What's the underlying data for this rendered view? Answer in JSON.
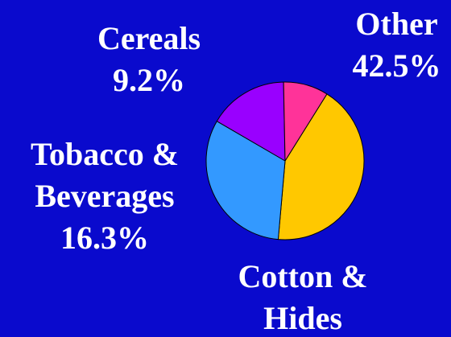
{
  "chart_data": {
    "type": "pie",
    "slices": [
      {
        "label_lines": [
          "Other",
          "42.5%"
        ],
        "value": 42.5,
        "color": "#FFC800"
      },
      {
        "label_lines": [
          "Cotton &",
          "Hides"
        ],
        "value": 32.0,
        "color": "#3399FF"
      },
      {
        "label_lines": [
          "Tobacco &",
          "Beverages",
          "16.3%"
        ],
        "value": 16.3,
        "color": "#9900FF"
      },
      {
        "label_lines": [
          "Cereals",
          "9.2%"
        ],
        "value": 9.2,
        "color": "#FF3399"
      }
    ],
    "start_angle_deg": -58,
    "direction": "clockwise",
    "background": "#0A0ACD",
    "label_color": "#FFFFFF",
    "edge_color": "#000000"
  }
}
